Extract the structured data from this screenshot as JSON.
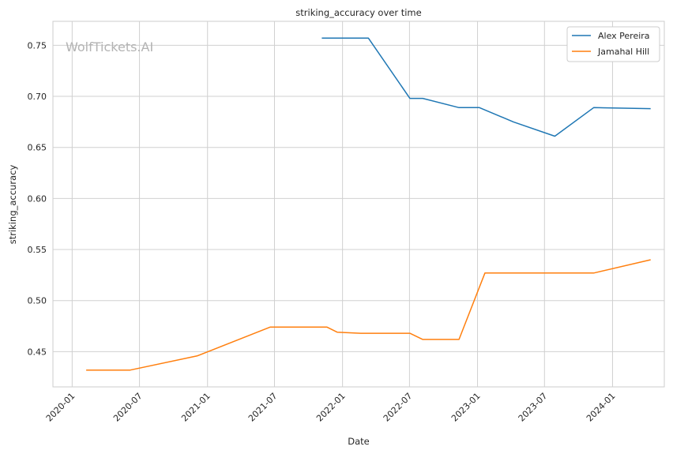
{
  "chart_data": {
    "type": "line",
    "title": "striking_accuracy over time",
    "xlabel": "Date",
    "ylabel": "striking_accuracy",
    "watermark": "WolfTickets.AI",
    "grid": true,
    "legend_position": "top-right",
    "x_type": "date",
    "xlim": [
      "2019-11-10",
      "2024-05-20"
    ],
    "ylim": [
      0.4155,
      0.7735
    ],
    "x_ticks": [
      "2020-01-01",
      "2020-07-01",
      "2021-01-01",
      "2021-07-01",
      "2022-01-01",
      "2022-07-01",
      "2023-01-01",
      "2023-07-01",
      "2024-01-01"
    ],
    "x_tick_labels": [
      "2020-01",
      "2020-07",
      "2021-01",
      "2021-07",
      "2022-01",
      "2022-07",
      "2023-01",
      "2023-07",
      "2024-01"
    ],
    "y_ticks": [
      0.45,
      0.5,
      0.55,
      0.6,
      0.65,
      0.7,
      0.75
    ],
    "y_tick_labels": [
      "0.45",
      "0.50",
      "0.55",
      "0.60",
      "0.65",
      "0.70",
      "0.75"
    ],
    "series": [
      {
        "name": "Alex Pereira",
        "color": "#1f77b4",
        "x": [
          "2021-11-06",
          "2022-03-12",
          "2022-07-02",
          "2022-08-06",
          "2022-11-12",
          "2023-01-06",
          "2023-04-08",
          "2023-07-29",
          "2023-11-11",
          "2024-04-13"
        ],
        "y": [
          0.757,
          0.757,
          0.698,
          0.698,
          0.689,
          0.689,
          0.675,
          0.661,
          0.689,
          0.688
        ]
      },
      {
        "name": "Jamahal Hill",
        "color": "#ff7f0e",
        "x": [
          "2020-02-08",
          "2020-06-06",
          "2020-12-05",
          "2021-06-19",
          "2021-11-20",
          "2021-12-18",
          "2022-02-19",
          "2022-07-02",
          "2022-08-06",
          "2022-11-12",
          "2023-01-21",
          "2023-11-11",
          "2024-04-13"
        ],
        "y": [
          0.432,
          0.432,
          0.446,
          0.474,
          0.474,
          0.469,
          0.468,
          0.468,
          0.462,
          0.462,
          0.527,
          0.527,
          0.54
        ]
      }
    ]
  }
}
